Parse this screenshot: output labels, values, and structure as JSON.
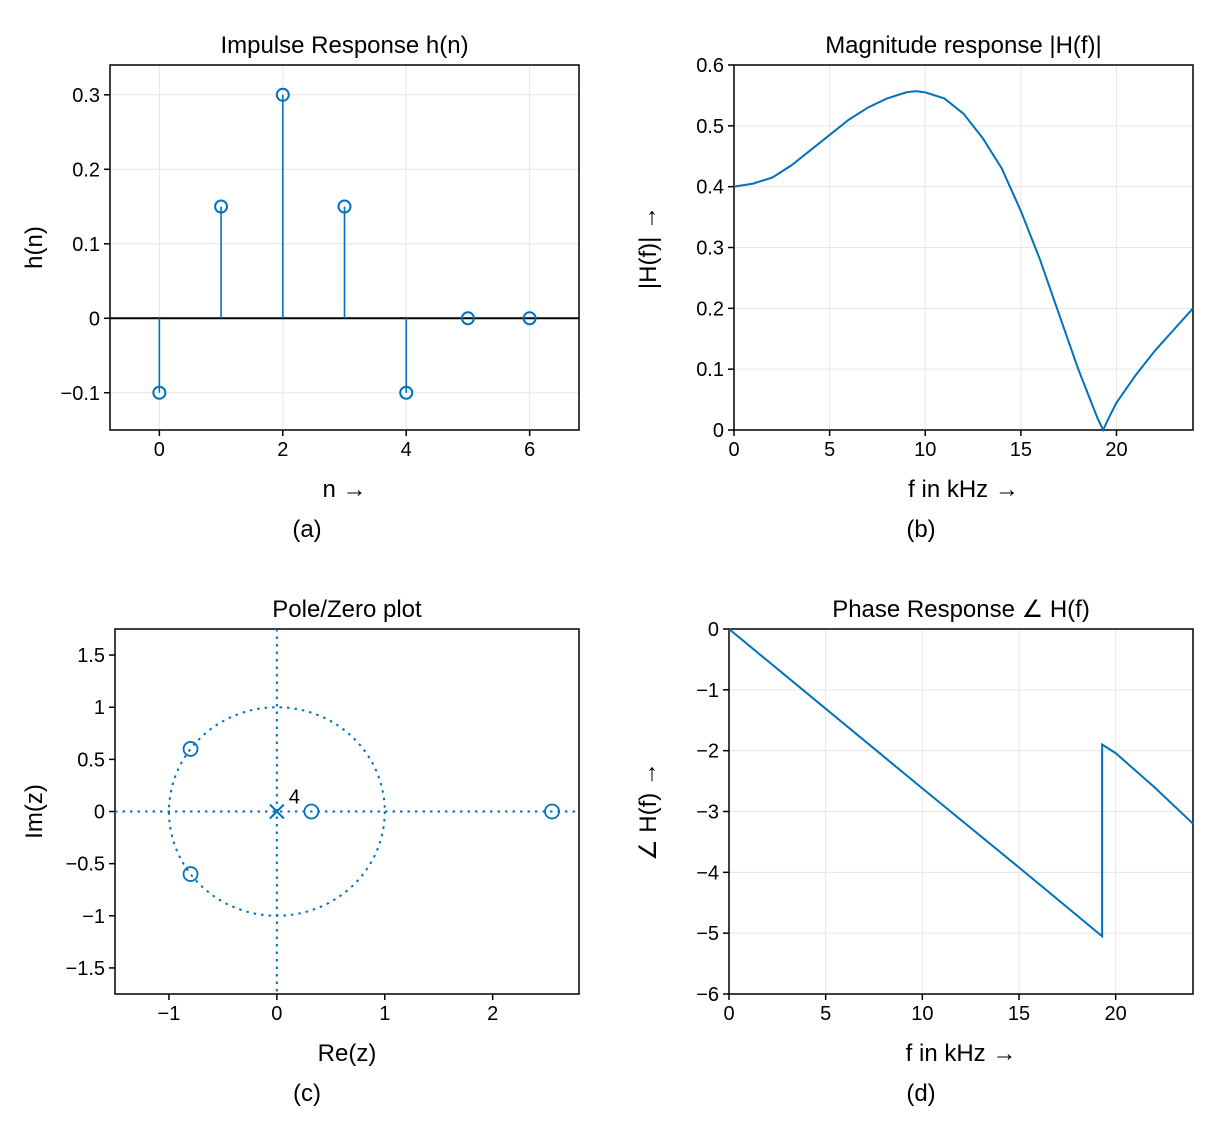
{
  "colors": {
    "line": "#0072bd",
    "grid": "#e6e6e6",
    "axis": "#000000",
    "bg": "#ffffff"
  },
  "fontsize": {
    "title": 24,
    "tick": 20,
    "label": 24,
    "sublabel": 24
  },
  "panel_a": {
    "type": "stem",
    "title": "Impulse Response h(n)",
    "xlabel": "n →",
    "ylabel": "h(n)",
    "sublabel": "(a)",
    "n": [
      0,
      1,
      2,
      3,
      4,
      5,
      6
    ],
    "h": [
      -0.1,
      0.15,
      0.3,
      0.15,
      -0.1,
      0.0,
      0.0
    ],
    "xlim": [
      -0.8,
      6.8
    ],
    "ylim": [
      -0.15,
      0.34
    ],
    "xticks": [
      0,
      2,
      4,
      6
    ],
    "yticks": [
      -0.1,
      0,
      0.1,
      0.2,
      0.3
    ],
    "marker_radius": 6,
    "show_grid": true,
    "baseline_y": 0,
    "line_color": "#0072bd",
    "line_width": 1.6
  },
  "panel_b": {
    "type": "line",
    "title": "Magnitude response |H(f)|",
    "xlabel": "f in kHz →",
    "ylabel": "|H(f)| →",
    "sublabel": "(b)",
    "xlim": [
      0,
      24
    ],
    "ylim": [
      0,
      0.6
    ],
    "xticks": [
      0,
      5,
      10,
      15,
      20
    ],
    "yticks": [
      0,
      0.1,
      0.2,
      0.3,
      0.4,
      0.5,
      0.6
    ],
    "show_grid": true,
    "line_color": "#0072bd",
    "line_width": 2,
    "points": [
      [
        0,
        0.4
      ],
      [
        1,
        0.405
      ],
      [
        2,
        0.415
      ],
      [
        3,
        0.435
      ],
      [
        4,
        0.46
      ],
      [
        5,
        0.485
      ],
      [
        6,
        0.51
      ],
      [
        7,
        0.53
      ],
      [
        8,
        0.545
      ],
      [
        9,
        0.555
      ],
      [
        9.5,
        0.557
      ],
      [
        10,
        0.555
      ],
      [
        11,
        0.545
      ],
      [
        12,
        0.52
      ],
      [
        13,
        0.48
      ],
      [
        14,
        0.43
      ],
      [
        15,
        0.36
      ],
      [
        16,
        0.28
      ],
      [
        17,
        0.19
      ],
      [
        18,
        0.1
      ],
      [
        19,
        0.02
      ],
      [
        19.3,
        0.0
      ],
      [
        19.6,
        0.02
      ],
      [
        20,
        0.045
      ],
      [
        21,
        0.09
      ],
      [
        22,
        0.13
      ],
      [
        23,
        0.165
      ],
      [
        24,
        0.2
      ]
    ]
  },
  "panel_c": {
    "type": "pole-zero",
    "title": "Pole/Zero plot",
    "xlabel": "Re(z)",
    "ylabel": "Im(z)",
    "sublabel": "(c)",
    "xlim": [
      -1.5,
      2.8
    ],
    "ylim": [
      -1.75,
      1.75
    ],
    "xticks": [
      -1,
      0,
      1,
      2
    ],
    "yticks": [
      -1.5,
      -1,
      -0.5,
      0,
      0.5,
      1,
      1.5
    ],
    "show_grid": false,
    "line_color": "#0072bd",
    "unit_circle_radius": 1,
    "marker_radius": 7,
    "zeros": [
      {
        "re": -0.8,
        "im": 0.6
      },
      {
        "re": -0.8,
        "im": -0.6
      },
      {
        "re": 0.32,
        "im": 0.0
      },
      {
        "re": 2.55,
        "im": 0.0
      }
    ],
    "poles": [
      {
        "re": 0.0,
        "im": 0.0,
        "mult": 4
      }
    ],
    "pole_label": "4"
  },
  "panel_d": {
    "type": "line",
    "title": "Phase Response ∠ H(f)",
    "xlabel": "f in kHz →",
    "ylabel": "∠ H(f) →",
    "sublabel": "(d)",
    "xlim": [
      0,
      24
    ],
    "ylim": [
      -6,
      0
    ],
    "xticks": [
      0,
      5,
      10,
      15,
      20
    ],
    "yticks": [
      -6,
      -5,
      -4,
      -3,
      -2,
      -1,
      0
    ],
    "show_grid": true,
    "line_color": "#0072bd",
    "line_width": 2,
    "points": [
      [
        0,
        0.0
      ],
      [
        5,
        -1.31
      ],
      [
        10,
        -2.62
      ],
      [
        15,
        -3.92
      ],
      [
        19.3,
        -5.05
      ],
      [
        19.3,
        -1.9
      ],
      [
        20,
        -2.04
      ],
      [
        22,
        -2.6
      ],
      [
        24,
        -3.2
      ]
    ]
  }
}
